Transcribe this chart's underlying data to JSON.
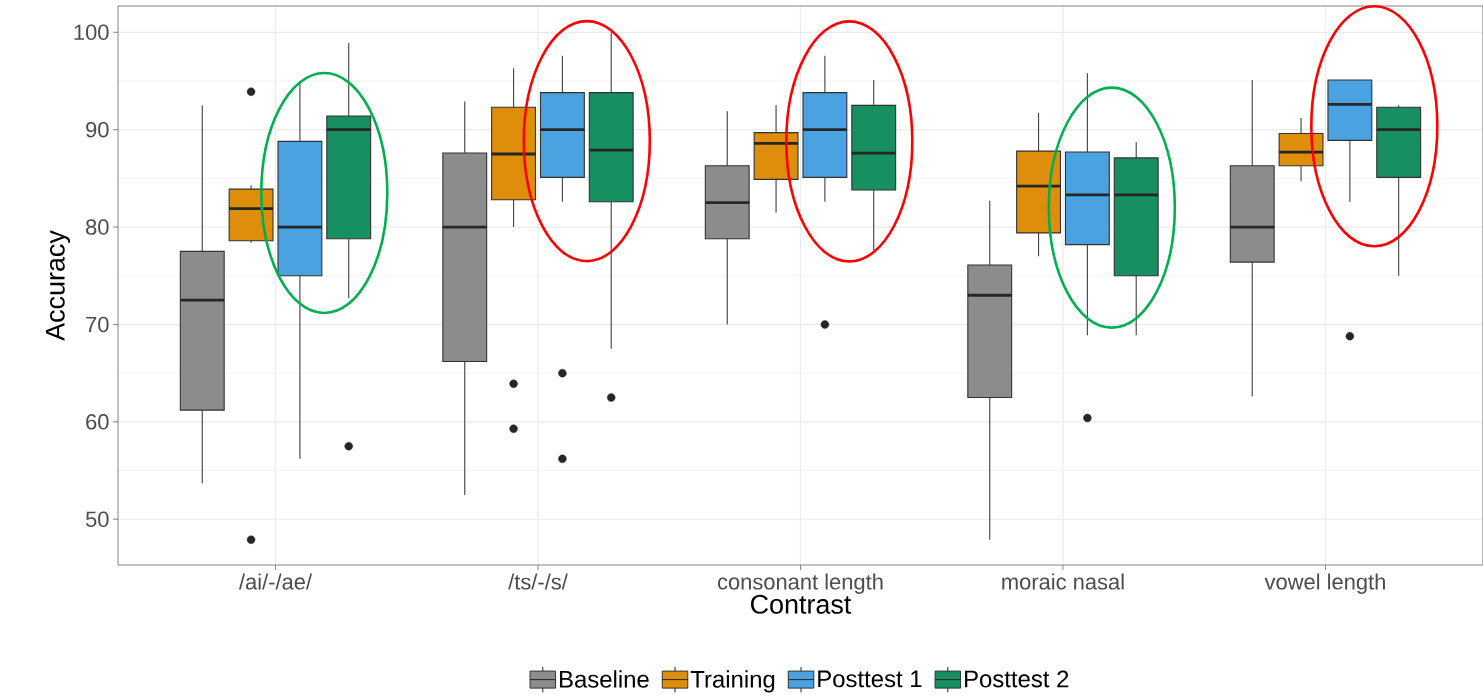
{
  "chart_data": {
    "type": "box",
    "xlabel": "Contrast",
    "ylabel": "Accuracy",
    "categories": [
      "/ai/-/ae/",
      "/ts/-/s/",
      "consonant length",
      "moraic nasal",
      "vowel length"
    ],
    "ylim": [
      45.3,
      102.7
    ],
    "yticks": [
      50,
      60,
      70,
      80,
      90,
      100
    ],
    "grid": true,
    "legend": "bottom",
    "series": [
      {
        "name": "Baseline",
        "color": "#8c8c8c",
        "boxes": [
          {
            "low": 53.7,
            "q1": 61.2,
            "median": 72.5,
            "q3": 77.5,
            "high": 92.5
          },
          {
            "low": 52.5,
            "q1": 66.2,
            "median": 80,
            "q3": 87.6,
            "high": 92.9
          },
          {
            "low": 70,
            "q1": 78.8,
            "median": 82.5,
            "q3": 86.3,
            "high": 91.9
          },
          {
            "low": 47.9,
            "q1": 62.5,
            "median": 73,
            "q3": 76.1,
            "high": 82.7
          },
          {
            "low": 62.6,
            "q1": 76.4,
            "median": 80,
            "q3": 86.3,
            "high": 95.1
          }
        ]
      },
      {
        "name": "Training",
        "color": "#df8e0b",
        "boxes": [
          {
            "low": 78.4,
            "q1": 78.6,
            "median": 81.9,
            "q3": 83.9,
            "high": 84.3,
            "outliers": [
              93.9,
              47.9
            ]
          },
          {
            "low": 80,
            "q1": 82.8,
            "median": 87.5,
            "q3": 92.3,
            "high": 96.3,
            "outliers": [
              63.9,
              59.3
            ]
          },
          {
            "low": 81.5,
            "q1": 84.9,
            "median": 88.6,
            "q3": 89.7,
            "high": 92.5
          },
          {
            "low": 77,
            "q1": 79.4,
            "median": 84.2,
            "q3": 87.8,
            "high": 91.7
          },
          {
            "low": 84.7,
            "q1": 86.3,
            "median": 87.7,
            "q3": 89.6,
            "high": 91.2
          }
        ]
      },
      {
        "name": "Posttest 1",
        "color": "#4aa3e0",
        "boxes": [
          {
            "low": 56.2,
            "q1": 75,
            "median": 80,
            "q3": 88.8,
            "high": 94.9
          },
          {
            "low": 82.6,
            "q1": 85.1,
            "median": 90,
            "q3": 93.8,
            "high": 97.6,
            "outliers": [
              65,
              56.2
            ]
          },
          {
            "low": 82.6,
            "q1": 85.1,
            "median": 90,
            "q3": 93.8,
            "high": 97.6,
            "outliers": [
              70
            ]
          },
          {
            "low": 68.9,
            "q1": 78.2,
            "median": 83.3,
            "q3": 87.7,
            "high": 95.8,
            "outliers": [
              60.4
            ]
          },
          {
            "low": 82.6,
            "q1": 88.9,
            "median": 92.6,
            "q3": 95.1,
            "high": 95.1,
            "outliers": [
              68.8
            ]
          }
        ]
      },
      {
        "name": "Posttest 2",
        "color": "#168f61",
        "boxes": [
          {
            "low": 72.7,
            "q1": 78.8,
            "median": 90,
            "q3": 91.4,
            "high": 98.9,
            "outliers": [
              57.5
            ]
          },
          {
            "low": 67.5,
            "q1": 82.6,
            "median": 87.9,
            "q3": 93.8,
            "high": 100,
            "outliers": [
              62.5
            ]
          },
          {
            "low": 77.6,
            "q1": 83.8,
            "median": 87.6,
            "q3": 92.5,
            "high": 95.1
          },
          {
            "low": 68.9,
            "q1": 75,
            "median": 83.3,
            "q3": 87.1,
            "high": 88.7
          },
          {
            "low": 75,
            "q1": 85.1,
            "median": 90,
            "q3": 92.3,
            "high": 92.5
          }
        ]
      }
    ]
  }
}
